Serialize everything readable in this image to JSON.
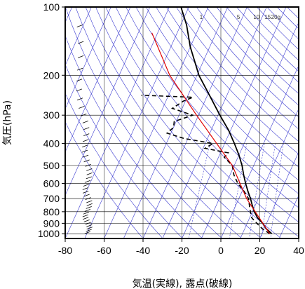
{
  "chart_data": {
    "type": "line",
    "diagram": "skew-T log-P",
    "xlabel": "気温(実線), 露点(破線)",
    "ylabel": "気圧(hPa)",
    "x_ticks": [
      -80,
      -60,
      -40,
      -20,
      0,
      20,
      40
    ],
    "y_ticks": [
      100,
      200,
      300,
      400,
      500,
      600,
      700,
      800,
      900,
      1000
    ],
    "xlim": [
      -80,
      40
    ],
    "ylim": [
      1050,
      100
    ],
    "y_scale": "log",
    "grid": true,
    "mixing_ratio_labels": [
      "1",
      "5",
      "10",
      "15",
      "20g"
    ],
    "mixing_ratio_values": [
      1,
      5,
      10,
      15,
      20
    ],
    "colors": {
      "temperature": "#000000",
      "dewpoint": "#000000",
      "reference": "#e00000",
      "adiabats": "#3a3ad0",
      "grid": "#000000"
    },
    "series": [
      {
        "name": "",
        "style": "solid",
        "points": [
          [
            1000,
            25
          ],
          [
            950,
            21
          ],
          [
            900,
            18
          ],
          [
            850,
            14
          ],
          [
            800,
            11
          ],
          [
            750,
            8.5
          ],
          [
            700,
            6
          ],
          [
            650,
            3
          ],
          [
            600,
            0
          ],
          [
            550,
            -3
          ],
          [
            500,
            -6
          ],
          [
            450,
            -10
          ],
          [
            400,
            -15
          ],
          [
            350,
            -21
          ],
          [
            300,
            -29
          ],
          [
            250,
            -38
          ],
          [
            200,
            -49
          ],
          [
            150,
            -60
          ],
          [
            120,
            -67
          ],
          [
            100,
            -74
          ]
        ]
      },
      {
        "name": "",
        "style": "dashed",
        "points": [
          [
            1000,
            24
          ],
          [
            950,
            19
          ],
          [
            900,
            15
          ],
          [
            850,
            11
          ],
          [
            800,
            9
          ],
          [
            750,
            7
          ],
          [
            700,
            5
          ],
          [
            650,
            1
          ],
          [
            600,
            -4
          ],
          [
            550,
            -8
          ],
          [
            500,
            -11
          ],
          [
            480,
            -14
          ],
          [
            460,
            -17
          ],
          [
            440,
            -16
          ],
          [
            420,
            -29
          ],
          [
            400,
            -26
          ],
          [
            380,
            -42
          ],
          [
            360,
            -52
          ],
          [
            340,
            -50
          ],
          [
            320,
            -51
          ],
          [
            300,
            -43
          ],
          [
            280,
            -55
          ],
          [
            260,
            -51
          ],
          [
            250,
            -47
          ],
          [
            245,
            -74
          ]
        ]
      },
      {
        "name": "",
        "style": "solid",
        "points": [
          [
            1000,
            24
          ],
          [
            700,
            4
          ],
          [
            500,
            -11
          ],
          [
            300,
            -41
          ],
          [
            200,
            -64
          ],
          [
            130,
            -83
          ]
        ]
      }
    ],
    "wind_barbs": [
      {
        "p": 1000,
        "count": 40
      },
      {
        "p": 100,
        "count": 0
      }
    ]
  }
}
